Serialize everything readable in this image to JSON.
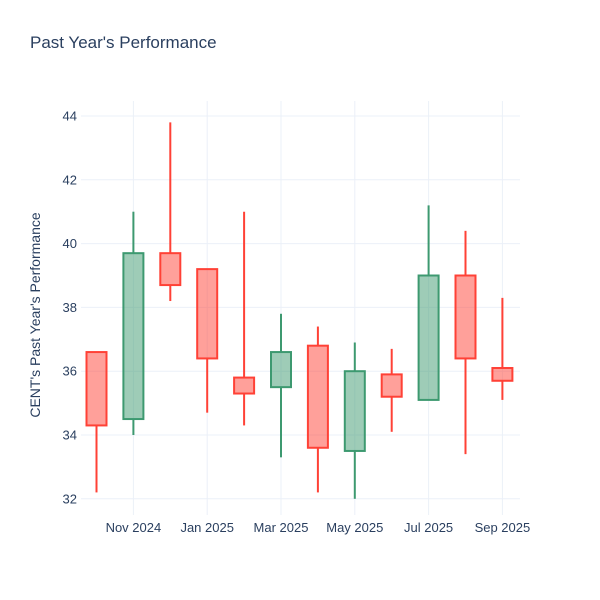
{
  "title": "Past Year's Performance",
  "colors": {
    "increasing": "#3D9970",
    "decreasing": "#FF4136",
    "text": "#2a3f5f",
    "grid": "#EBF0F8",
    "background": "#FFFFFF"
  },
  "chart_data": {
    "type": "candlestick",
    "title": "Past Year's Performance",
    "xlabel": "",
    "ylabel": "CENT's Past Year's Performance",
    "grid": true,
    "legend": "none",
    "ylim": [
      31.6,
      44.5
    ],
    "y_ticks": [
      32,
      34,
      36,
      38,
      40,
      42,
      44
    ],
    "x": [
      "Oct 2024",
      "Nov 2024",
      "Dec 2024",
      "Jan 2025",
      "Feb 2025",
      "Mar 2025",
      "Apr 2025",
      "May 2025",
      "Jun 2025",
      "Jul 2025",
      "Aug 2025",
      "Sep 2025"
    ],
    "x_tick_labels": [
      "Nov 2024",
      "Jan 2025",
      "Mar 2025",
      "May 2025",
      "Jul 2025",
      "Sep 2025"
    ],
    "series": [
      {
        "name": "CENT",
        "open": [
          36.6,
          34.5,
          39.7,
          39.2,
          35.8,
          35.5,
          36.8,
          33.5,
          35.9,
          35.1,
          39.0,
          36.1
        ],
        "high": [
          36.6,
          41.0,
          43.8,
          39.2,
          41.0,
          37.8,
          37.4,
          36.9,
          36.7,
          41.2,
          40.4,
          38.3
        ],
        "low": [
          32.2,
          34.0,
          38.2,
          34.7,
          34.3,
          33.3,
          32.2,
          32.0,
          34.1,
          35.1,
          33.4,
          35.1
        ],
        "close": [
          34.3,
          39.7,
          38.7,
          36.4,
          35.3,
          36.6,
          33.6,
          36.0,
          35.2,
          39.0,
          36.4,
          35.7
        ]
      }
    ]
  }
}
